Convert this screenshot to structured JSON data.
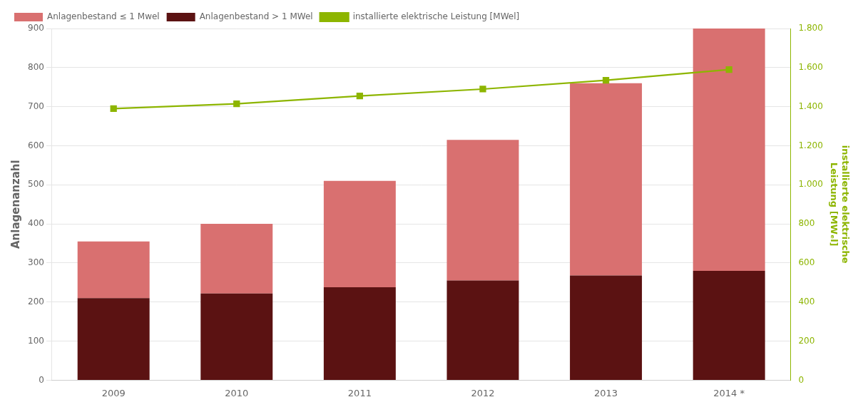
{
  "chart_data": {
    "type": "bar",
    "categories": [
      "2009",
      "2010",
      "2011",
      "2012",
      "2013",
      "2014 *"
    ],
    "series": [
      {
        "name": "Anlagenbestand ≤ 1 Mwel",
        "type": "bar",
        "color": "#D97070",
        "values": [
          145,
          178,
          272,
          360,
          492,
          620
        ]
      },
      {
        "name": "Anlagenbestand > 1 MWel",
        "type": "bar",
        "color": "#5B1212",
        "values": [
          210,
          222,
          238,
          255,
          268,
          280
        ]
      },
      {
        "name": "installierte elektrische Leistung [MWel]",
        "type": "line",
        "color": "#8DB500",
        "marker": "square",
        "axis": "y2",
        "values": [
          1.39,
          1.415,
          1.455,
          1.49,
          1.535,
          1.59
        ]
      }
    ],
    "stacked": true,
    "ylabel": "Anlagenanzahl",
    "y2label": [
      "installierte elektrische",
      "Leistung [MWₑl]"
    ],
    "ylim": [
      0,
      900
    ],
    "yticks": [
      0,
      100,
      200,
      300,
      400,
      500,
      600,
      700,
      800,
      900
    ],
    "y2lim": [
      0,
      1.8
    ],
    "y2ticks": [
      0,
      {
        "value": 0.2,
        "label": "200"
      },
      {
        "value": 0.4,
        "label": "400"
      },
      {
        "value": 0.6,
        "label": "600"
      },
      {
        "value": 0.8,
        "label": "800"
      },
      {
        "value": 1.0,
        "label": "1.000"
      },
      {
        "value": 1.2,
        "label": "1.200"
      },
      {
        "value": 1.4,
        "label": "1.400"
      },
      {
        "value": 1.6,
        "label": "1.600"
      },
      {
        "value": 1.8,
        "label": "1.800"
      }
    ],
    "grid": true,
    "legend": "top"
  }
}
